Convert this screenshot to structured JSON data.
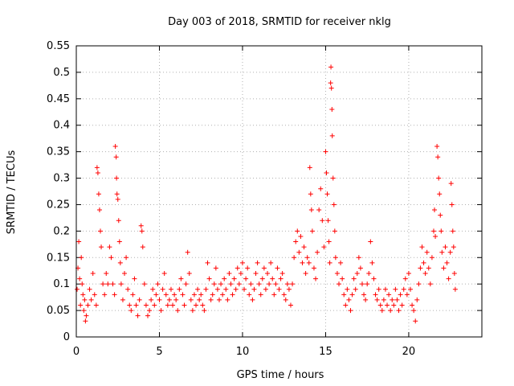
{
  "chart_data": {
    "type": "scatter",
    "title": "Day 003 of 2018, SRMTID for receiver nklg",
    "xlabel": "GPS time / hours",
    "ylabel": "SRMTID / TECUs",
    "xlim": [
      0,
      24.4
    ],
    "ylim": [
      0,
      0.55
    ],
    "x_ticks": [
      0,
      5,
      10,
      15,
      20
    ],
    "x_tick_labels": [
      "0",
      "5",
      "10",
      "15",
      "20"
    ],
    "y_ticks": [
      0,
      0.05,
      0.1,
      0.15,
      0.2,
      0.25,
      0.3,
      0.35,
      0.4,
      0.45,
      0.5,
      0.55
    ],
    "y_tick_labels": [
      "0",
      "0.05",
      "0.1",
      "0.15",
      "0.2",
      "0.25",
      "0.3",
      "0.35",
      "0.4",
      "0.45",
      "0.5",
      "0.55"
    ],
    "grid": true,
    "marker": "+",
    "color": "#ff0000",
    "series": [
      {
        "name": "SRMTID",
        "points": [
          [
            0.05,
            0.09
          ],
          [
            0.1,
            0.13
          ],
          [
            0.15,
            0.18
          ],
          [
            0.2,
            0.11
          ],
          [
            0.25,
            0.06
          ],
          [
            0.3,
            0.15
          ],
          [
            0.35,
            0.1
          ],
          [
            0.4,
            0.08
          ],
          [
            0.45,
            0.05
          ],
          [
            0.5,
            0.07
          ],
          [
            0.55,
            0.03
          ],
          [
            0.6,
            0.04
          ],
          [
            0.7,
            0.06
          ],
          [
            0.8,
            0.09
          ],
          [
            0.9,
            0.07
          ],
          [
            1.0,
            0.12
          ],
          [
            1.1,
            0.08
          ],
          [
            1.2,
            0.06
          ],
          [
            1.25,
            0.32
          ],
          [
            1.3,
            0.31
          ],
          [
            1.35,
            0.27
          ],
          [
            1.4,
            0.24
          ],
          [
            1.45,
            0.2
          ],
          [
            1.5,
            0.17
          ],
          [
            1.6,
            0.1
          ],
          [
            1.7,
            0.08
          ],
          [
            1.8,
            0.12
          ],
          [
            1.9,
            0.1
          ],
          [
            2.0,
            0.17
          ],
          [
            2.1,
            0.15
          ],
          [
            2.2,
            0.1
          ],
          [
            2.3,
            0.08
          ],
          [
            2.35,
            0.36
          ],
          [
            2.4,
            0.34
          ],
          [
            2.42,
            0.3
          ],
          [
            2.45,
            0.27
          ],
          [
            2.5,
            0.26
          ],
          [
            2.55,
            0.22
          ],
          [
            2.6,
            0.18
          ],
          [
            2.65,
            0.14
          ],
          [
            2.7,
            0.1
          ],
          [
            2.8,
            0.07
          ],
          [
            2.9,
            0.12
          ],
          [
            3.0,
            0.15
          ],
          [
            3.1,
            0.09
          ],
          [
            3.2,
            0.06
          ],
          [
            3.3,
            0.05
          ],
          [
            3.4,
            0.08
          ],
          [
            3.5,
            0.11
          ],
          [
            3.6,
            0.06
          ],
          [
            3.7,
            0.04
          ],
          [
            3.8,
            0.07
          ],
          [
            3.9,
            0.21
          ],
          [
            3.95,
            0.2
          ],
          [
            4.0,
            0.17
          ],
          [
            4.1,
            0.1
          ],
          [
            4.2,
            0.06
          ],
          [
            4.3,
            0.04
          ],
          [
            4.4,
            0.05
          ],
          [
            4.5,
            0.07
          ],
          [
            4.6,
            0.09
          ],
          [
            4.7,
            0.06
          ],
          [
            4.8,
            0.08
          ],
          [
            4.9,
            0.1
          ],
          [
            5.0,
            0.07
          ],
          [
            5.1,
            0.05
          ],
          [
            5.2,
            0.09
          ],
          [
            5.3,
            0.12
          ],
          [
            5.4,
            0.08
          ],
          [
            5.5,
            0.06
          ],
          [
            5.6,
            0.07
          ],
          [
            5.7,
            0.09
          ],
          [
            5.8,
            0.06
          ],
          [
            5.9,
            0.08
          ],
          [
            6.0,
            0.07
          ],
          [
            6.1,
            0.05
          ],
          [
            6.2,
            0.09
          ],
          [
            6.3,
            0.11
          ],
          [
            6.4,
            0.08
          ],
          [
            6.5,
            0.06
          ],
          [
            6.6,
            0.1
          ],
          [
            6.7,
            0.16
          ],
          [
            6.8,
            0.12
          ],
          [
            6.9,
            0.07
          ],
          [
            7.0,
            0.05
          ],
          [
            7.1,
            0.08
          ],
          [
            7.2,
            0.06
          ],
          [
            7.3,
            0.09
          ],
          [
            7.4,
            0.07
          ],
          [
            7.5,
            0.08
          ],
          [
            7.6,
            0.06
          ],
          [
            7.7,
            0.05
          ],
          [
            7.8,
            0.09
          ],
          [
            7.9,
            0.14
          ],
          [
            8.0,
            0.11
          ],
          [
            8.1,
            0.07
          ],
          [
            8.2,
            0.08
          ],
          [
            8.3,
            0.1
          ],
          [
            8.4,
            0.13
          ],
          [
            8.5,
            0.09
          ],
          [
            8.6,
            0.07
          ],
          [
            8.7,
            0.1
          ],
          [
            8.8,
            0.08
          ],
          [
            8.9,
            0.11
          ],
          [
            9.0,
            0.09
          ],
          [
            9.1,
            0.07
          ],
          [
            9.2,
            0.12
          ],
          [
            9.3,
            0.1
          ],
          [
            9.4,
            0.08
          ],
          [
            9.5,
            0.11
          ],
          [
            9.6,
            0.09
          ],
          [
            9.7,
            0.13
          ],
          [
            9.8,
            0.1
          ],
          [
            9.9,
            0.12
          ],
          [
            10.0,
            0.14
          ],
          [
            10.1,
            0.09
          ],
          [
            10.2,
            0.11
          ],
          [
            10.3,
            0.13
          ],
          [
            10.4,
            0.08
          ],
          [
            10.5,
            0.1
          ],
          [
            10.6,
            0.07
          ],
          [
            10.7,
            0.09
          ],
          [
            10.8,
            0.12
          ],
          [
            10.9,
            0.14
          ],
          [
            11.0,
            0.1
          ],
          [
            11.1,
            0.08
          ],
          [
            11.2,
            0.11
          ],
          [
            11.3,
            0.13
          ],
          [
            11.4,
            0.09
          ],
          [
            11.5,
            0.12
          ],
          [
            11.6,
            0.1
          ],
          [
            11.7,
            0.14
          ],
          [
            11.8,
            0.11
          ],
          [
            11.9,
            0.08
          ],
          [
            12.0,
            0.1
          ],
          [
            12.1,
            0.13
          ],
          [
            12.2,
            0.09
          ],
          [
            12.3,
            0.11
          ],
          [
            12.4,
            0.12
          ],
          [
            12.5,
            0.08
          ],
          [
            12.6,
            0.07
          ],
          [
            12.7,
            0.1
          ],
          [
            12.8,
            0.09
          ],
          [
            12.9,
            0.06
          ],
          [
            13.0,
            0.1
          ],
          [
            13.1,
            0.15
          ],
          [
            13.2,
            0.18
          ],
          [
            13.3,
            0.2
          ],
          [
            13.4,
            0.16
          ],
          [
            13.5,
            0.19
          ],
          [
            13.6,
            0.14
          ],
          [
            13.7,
            0.17
          ],
          [
            13.8,
            0.12
          ],
          [
            13.9,
            0.15
          ],
          [
            14.0,
            0.14
          ],
          [
            14.05,
            0.32
          ],
          [
            14.1,
            0.27
          ],
          [
            14.15,
            0.24
          ],
          [
            14.2,
            0.2
          ],
          [
            14.3,
            0.13
          ],
          [
            14.4,
            0.11
          ],
          [
            14.5,
            0.16
          ],
          [
            14.6,
            0.24
          ],
          [
            14.7,
            0.28
          ],
          [
            14.8,
            0.22
          ],
          [
            14.9,
            0.17
          ],
          [
            15.0,
            0.35
          ],
          [
            15.05,
            0.31
          ],
          [
            15.1,
            0.27
          ],
          [
            15.15,
            0.22
          ],
          [
            15.2,
            0.18
          ],
          [
            15.25,
            0.14
          ],
          [
            15.3,
            0.48
          ],
          [
            15.32,
            0.51
          ],
          [
            15.35,
            0.47
          ],
          [
            15.38,
            0.43
          ],
          [
            15.4,
            0.38
          ],
          [
            15.45,
            0.3
          ],
          [
            15.5,
            0.25
          ],
          [
            15.55,
            0.2
          ],
          [
            15.6,
            0.15
          ],
          [
            15.7,
            0.12
          ],
          [
            15.8,
            0.1
          ],
          [
            15.9,
            0.14
          ],
          [
            16.0,
            0.11
          ],
          [
            16.1,
            0.08
          ],
          [
            16.2,
            0.06
          ],
          [
            16.3,
            0.09
          ],
          [
            16.4,
            0.07
          ],
          [
            16.5,
            0.05
          ],
          [
            16.6,
            0.08
          ],
          [
            16.7,
            0.11
          ],
          [
            16.8,
            0.09
          ],
          [
            16.9,
            0.12
          ],
          [
            17.0,
            0.15
          ],
          [
            17.1,
            0.13
          ],
          [
            17.2,
            0.1
          ],
          [
            17.3,
            0.08
          ],
          [
            17.4,
            0.07
          ],
          [
            17.5,
            0.1
          ],
          [
            17.6,
            0.12
          ],
          [
            17.7,
            0.18
          ],
          [
            17.8,
            0.14
          ],
          [
            17.9,
            0.11
          ],
          [
            18.0,
            0.08
          ],
          [
            18.1,
            0.07
          ],
          [
            18.2,
            0.09
          ],
          [
            18.3,
            0.06
          ],
          [
            18.4,
            0.05
          ],
          [
            18.5,
            0.07
          ],
          [
            18.6,
            0.09
          ],
          [
            18.7,
            0.06
          ],
          [
            18.8,
            0.08
          ],
          [
            18.9,
            0.05
          ],
          [
            19.0,
            0.07
          ],
          [
            19.1,
            0.06
          ],
          [
            19.2,
            0.09
          ],
          [
            19.3,
            0.07
          ],
          [
            19.4,
            0.05
          ],
          [
            19.5,
            0.08
          ],
          [
            19.6,
            0.06
          ],
          [
            19.7,
            0.09
          ],
          [
            19.8,
            0.11
          ],
          [
            19.9,
            0.08
          ],
          [
            20.0,
            0.12
          ],
          [
            20.1,
            0.09
          ],
          [
            20.2,
            0.06
          ],
          [
            20.3,
            0.05
          ],
          [
            20.4,
            0.03
          ],
          [
            20.5,
            0.07
          ],
          [
            20.6,
            0.1
          ],
          [
            20.7,
            0.13
          ],
          [
            20.8,
            0.17
          ],
          [
            20.9,
            0.14
          ],
          [
            21.0,
            0.12
          ],
          [
            21.1,
            0.16
          ],
          [
            21.2,
            0.13
          ],
          [
            21.3,
            0.1
          ],
          [
            21.4,
            0.15
          ],
          [
            21.5,
            0.2
          ],
          [
            21.55,
            0.24
          ],
          [
            21.6,
            0.19
          ],
          [
            21.7,
            0.36
          ],
          [
            21.75,
            0.34
          ],
          [
            21.8,
            0.3
          ],
          [
            21.85,
            0.27
          ],
          [
            21.9,
            0.23
          ],
          [
            21.95,
            0.2
          ],
          [
            22.0,
            0.16
          ],
          [
            22.1,
            0.13
          ],
          [
            22.2,
            0.17
          ],
          [
            22.3,
            0.14
          ],
          [
            22.4,
            0.11
          ],
          [
            22.5,
            0.16
          ],
          [
            22.55,
            0.29
          ],
          [
            22.6,
            0.25
          ],
          [
            22.65,
            0.2
          ],
          [
            22.7,
            0.17
          ],
          [
            22.75,
            0.12
          ],
          [
            22.8,
            0.09
          ]
        ]
      }
    ]
  }
}
